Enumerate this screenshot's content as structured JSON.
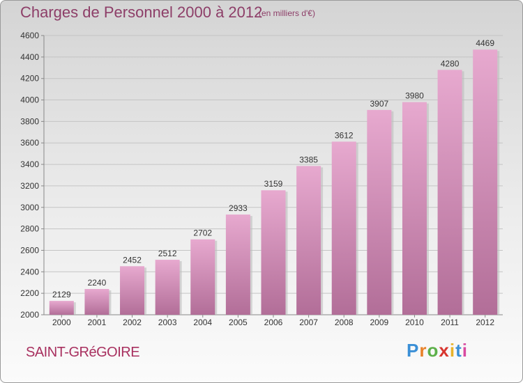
{
  "title": "Charges de Personnel 2000 à 2012",
  "unit_note": "(en milliers d'€)",
  "commune": "SAINT-GRéGOIRE",
  "brand": {
    "text": "Proxiti",
    "letter_colors": [
      "#3a8fd6",
      "#e8822a",
      "#5db04a",
      "#d8362f",
      "#e8b22a",
      "#3a8fd6",
      "#d84aa0"
    ]
  },
  "colors": {
    "bar_top": "#e7a9cf",
    "bar_bottom": "#b26e98",
    "text": "#8d3e68"
  },
  "chart_data": {
    "type": "bar",
    "categories": [
      "2000",
      "2001",
      "2002",
      "2003",
      "2004",
      "2005",
      "2006",
      "2007",
      "2008",
      "2009",
      "2010",
      "2011",
      "2012"
    ],
    "values": [
      2129,
      2240,
      2452,
      2512,
      2702,
      2933,
      3159,
      3385,
      3612,
      3907,
      3980,
      4280,
      4469
    ],
    "ylim": [
      2000,
      4600
    ],
    "yticks": [
      2000,
      2200,
      2400,
      2600,
      2800,
      3000,
      3200,
      3400,
      3600,
      3800,
      4000,
      4200,
      4400,
      4600
    ],
    "grid": true,
    "xlabel": "",
    "ylabel": ""
  }
}
